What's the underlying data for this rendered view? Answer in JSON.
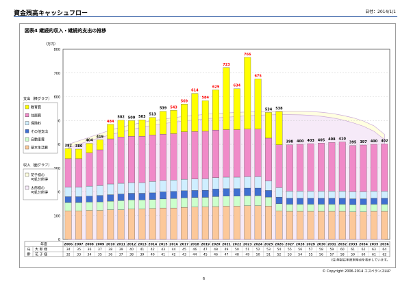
{
  "page": {
    "title": "資金残高キャッシュフロー",
    "date": "日付：2014/1/1",
    "copyright": "© Copyright 2006-2014 エスペランスLLP",
    "page_number": "6",
    "footnote": "(注)年齢は年度末時点を表示しています。"
  },
  "colors": {
    "education": "#ffff00",
    "residence": "#f08ac8",
    "insurance": "#cfeeff",
    "other": "#3f6fd0",
    "vehicle": "#ccffcc",
    "living": "#fcc89a",
    "income1": "#ffffe0",
    "income2": "#f6eaf8",
    "accent": "#ff0000",
    "panel_border": "#9a9a9a"
  },
  "chart_data": {
    "type": "bar",
    "title": "図表4 継続的収入・継続的支出の推移",
    "ylabel": "（万円）",
    "ylim": [
      0,
      800
    ],
    "yticks": [
      0,
      100,
      200,
      300,
      400,
      500,
      600,
      700,
      800
    ],
    "row_header": "年度",
    "age_label": "年齢",
    "age_rows": [
      "大 郎 様",
      "花 子 様"
    ],
    "categories": [
      "2006",
      "2007",
      "2008",
      "2009",
      "2010",
      "2011",
      "2012",
      "2013",
      "2014",
      "2015",
      "2016",
      "2017",
      "2018",
      "2019",
      "2020",
      "2021",
      "2022",
      "2023",
      "2024",
      "2025",
      "2026",
      "2027",
      "2028",
      "2029",
      "2030",
      "2031",
      "2032",
      "2033",
      "2034",
      "2035",
      "2036"
    ],
    "totals": [
      382,
      380,
      404,
      419,
      484,
      502,
      500,
      503,
      513,
      539,
      543,
      569,
      614,
      584,
      629,
      723,
      634,
      766,
      675,
      534,
      538,
      398,
      400,
      403,
      405,
      408,
      410,
      395,
      397,
      400,
      402
    ],
    "highlight": [
      false,
      false,
      false,
      false,
      true,
      false,
      false,
      false,
      false,
      false,
      true,
      true,
      true,
      true,
      true,
      true,
      true,
      true,
      true,
      false,
      false,
      false,
      false,
      false,
      false,
      false,
      false,
      false,
      false,
      false,
      false
    ],
    "series": [
      {
        "name": "基本生活費",
        "key": "living",
        "values": [
          120,
          120,
          122,
          122,
          125,
          125,
          128,
          128,
          130,
          132,
          132,
          135,
          136,
          137,
          138,
          140,
          140,
          142,
          142,
          140,
          120,
          118,
          118,
          118,
          118,
          118,
          118,
          116,
          116,
          118,
          118
        ]
      },
      {
        "name": "自動車費",
        "key": "vehicle",
        "values": [
          35,
          35,
          35,
          36,
          36,
          38,
          38,
          38,
          38,
          38,
          40,
          40,
          40,
          40,
          42,
          42,
          42,
          42,
          42,
          38,
          30,
          30,
          30,
          30,
          30,
          30,
          30,
          30,
          30,
          30,
          30
        ]
      },
      {
        "name": "その他支出",
        "key": "other",
        "values": [
          25,
          25,
          25,
          27,
          27,
          28,
          28,
          28,
          28,
          30,
          30,
          30,
          30,
          30,
          32,
          32,
          32,
          32,
          32,
          28,
          28,
          25,
          25,
          25,
          25,
          25,
          25,
          25,
          25,
          25,
          25
        ]
      },
      {
        "name": "保険料",
        "key": "insurance",
        "values": [
          40,
          40,
          42,
          42,
          45,
          45,
          45,
          45,
          48,
          48,
          48,
          48,
          48,
          48,
          48,
          48,
          48,
          48,
          48,
          40,
          40,
          30,
          30,
          30,
          30,
          30,
          30,
          30,
          30,
          30,
          30
        ]
      },
      {
        "name": "住居費",
        "key": "residence",
        "values": [
          120,
          120,
          140,
          150,
          190,
          195,
          195,
          195,
          195,
          195,
          195,
          200,
          200,
          200,
          200,
          200,
          200,
          200,
          200,
          180,
          180,
          195,
          197,
          200,
          202,
          205,
          207,
          194,
          196,
          197,
          199
        ]
      },
      {
        "name": "教育費",
        "key": "education",
        "values": [
          42,
          40,
          40,
          42,
          61,
          71,
          66,
          69,
          74,
          96,
          98,
          116,
          160,
          129,
          169,
          261,
          172,
          302,
          211,
          108,
          140,
          0,
          0,
          0,
          0,
          0,
          0,
          0,
          0,
          0,
          0
        ]
      }
    ],
    "income_legend_title": "収入（面グラフ）",
    "bar_legend_title": "支出（棒グラフ）",
    "income_series": [
      {
        "name": "花子様の可処分所得",
        "key": "income1",
        "values": [
          400,
          415,
          430,
          445,
          460,
          472,
          482,
          492,
          500,
          506,
          512,
          518,
          522,
          526,
          530,
          532,
          534,
          536,
          537,
          538,
          540,
          540,
          540,
          538,
          535,
          530,
          522,
          512,
          498,
          478,
          442
        ]
      },
      {
        "name": "太郎様の可処分所得",
        "key": "income2",
        "values": [
          385,
          400,
          415,
          428,
          440,
          452,
          462,
          472,
          480,
          487,
          493,
          498,
          503,
          507,
          511,
          514,
          517,
          520,
          522,
          524,
          525,
          525,
          524,
          522,
          518,
          512,
          503,
          491,
          476,
          455,
          420
        ]
      }
    ],
    "ages_taro": [
      "34",
      "35",
      "36",
      "37",
      "38",
      "39",
      "40",
      "41",
      "42",
      "43",
      "44",
      "45",
      "46",
      "47",
      "48",
      "49",
      "50",
      "51",
      "52",
      "53",
      "54",
      "55",
      "56",
      "57",
      "58",
      "59",
      "60",
      "61",
      "62",
      "63",
      "64"
    ],
    "ages_hanako": [
      "32",
      "33",
      "34",
      "35",
      "36",
      "37",
      "38",
      "39",
      "40",
      "41",
      "42",
      "43",
      "44",
      "45",
      "46",
      "47",
      "48",
      "49",
      "50",
      "51",
      "52",
      "53",
      "54",
      "55",
      "56",
      "57",
      "58",
      "59",
      "60",
      "61",
      "62"
    ]
  }
}
